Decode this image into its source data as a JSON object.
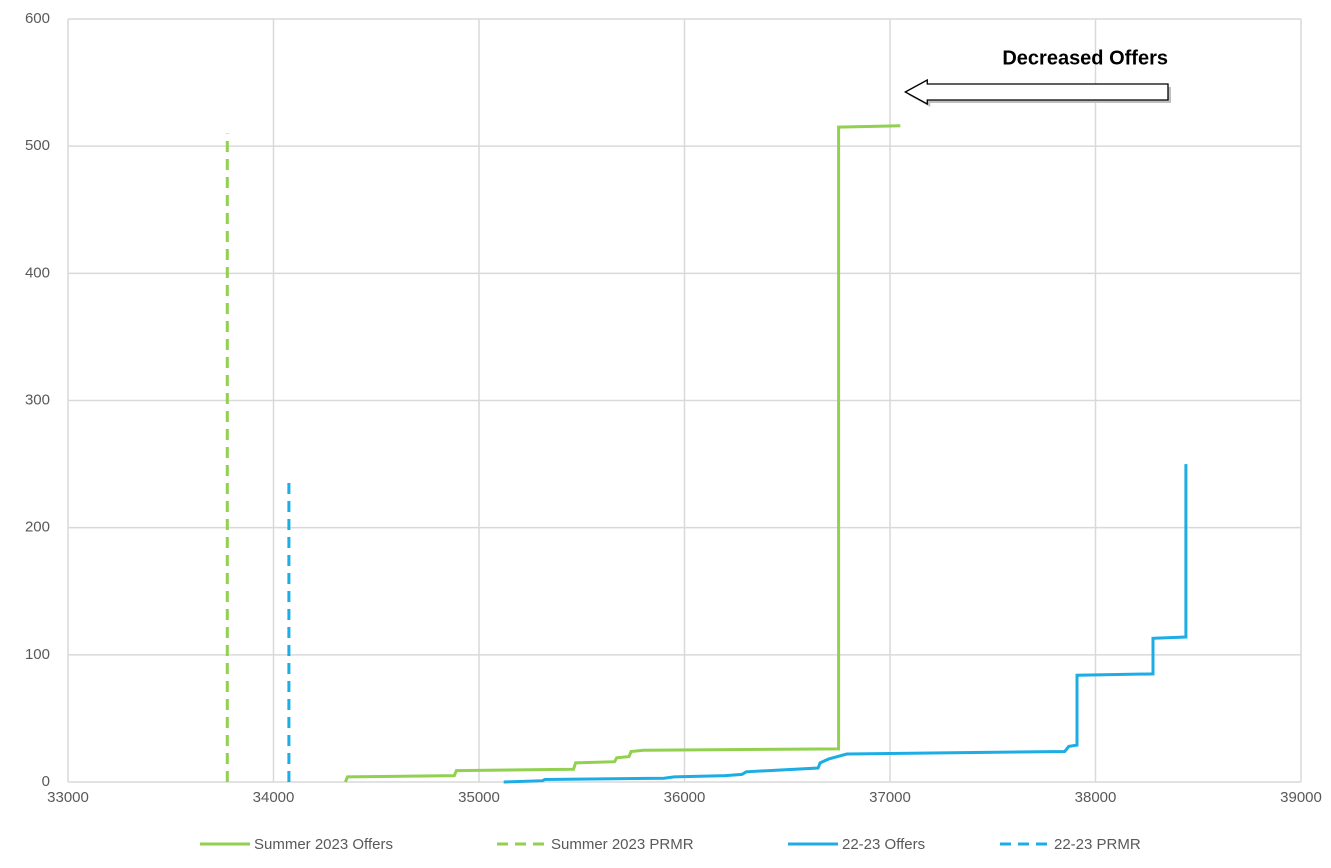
{
  "chart_data": {
    "type": "line",
    "title": "",
    "xlabel": "",
    "ylabel": "",
    "xlim": [
      33000,
      39000
    ],
    "ylim": [
      0,
      600
    ],
    "x_ticks": [
      33000,
      34000,
      35000,
      36000,
      37000,
      38000,
      39000
    ],
    "y_ticks": [
      0,
      100,
      200,
      300,
      400,
      500,
      600
    ],
    "grid": true,
    "legend_position": "bottom",
    "series": [
      {
        "name": "Summer 2023 Offers",
        "color": "#92D050",
        "style": "solid",
        "points": [
          [
            34350,
            0
          ],
          [
            34360,
            4
          ],
          [
            34880,
            5
          ],
          [
            34890,
            9
          ],
          [
            35460,
            10
          ],
          [
            35470,
            15
          ],
          [
            35660,
            16
          ],
          [
            35670,
            19
          ],
          [
            35730,
            20
          ],
          [
            35740,
            24
          ],
          [
            35800,
            25
          ],
          [
            36750,
            26
          ],
          [
            36750,
            515
          ],
          [
            37050,
            516
          ]
        ]
      },
      {
        "name": "Summer 2023 PRMR",
        "color": "#92D050",
        "style": "dashed",
        "points": [
          [
            33775,
            0
          ],
          [
            33775,
            510
          ]
        ]
      },
      {
        "name": "22-23 Offers",
        "color": "#1CADE4",
        "style": "solid",
        "points": [
          [
            35120,
            0
          ],
          [
            35310,
            1
          ],
          [
            35320,
            2
          ],
          [
            35900,
            3
          ],
          [
            35950,
            4
          ],
          [
            36200,
            5
          ],
          [
            36280,
            6
          ],
          [
            36300,
            8
          ],
          [
            36650,
            11
          ],
          [
            36660,
            15
          ],
          [
            36700,
            18
          ],
          [
            36790,
            22
          ],
          [
            37850,
            24
          ],
          [
            37870,
            28
          ],
          [
            37910,
            29
          ],
          [
            37910,
            84
          ],
          [
            38280,
            85
          ],
          [
            38280,
            113
          ],
          [
            38440,
            114
          ],
          [
            38440,
            250
          ]
        ]
      },
      {
        "name": "22-23 PRMR",
        "color": "#1CADE4",
        "style": "dashed",
        "points": [
          [
            34075,
            0
          ],
          [
            34075,
            240
          ]
        ]
      }
    ],
    "annotations": [
      {
        "text": "Decreased Offers",
        "points_to": [
          37050,
          540
        ]
      }
    ]
  }
}
